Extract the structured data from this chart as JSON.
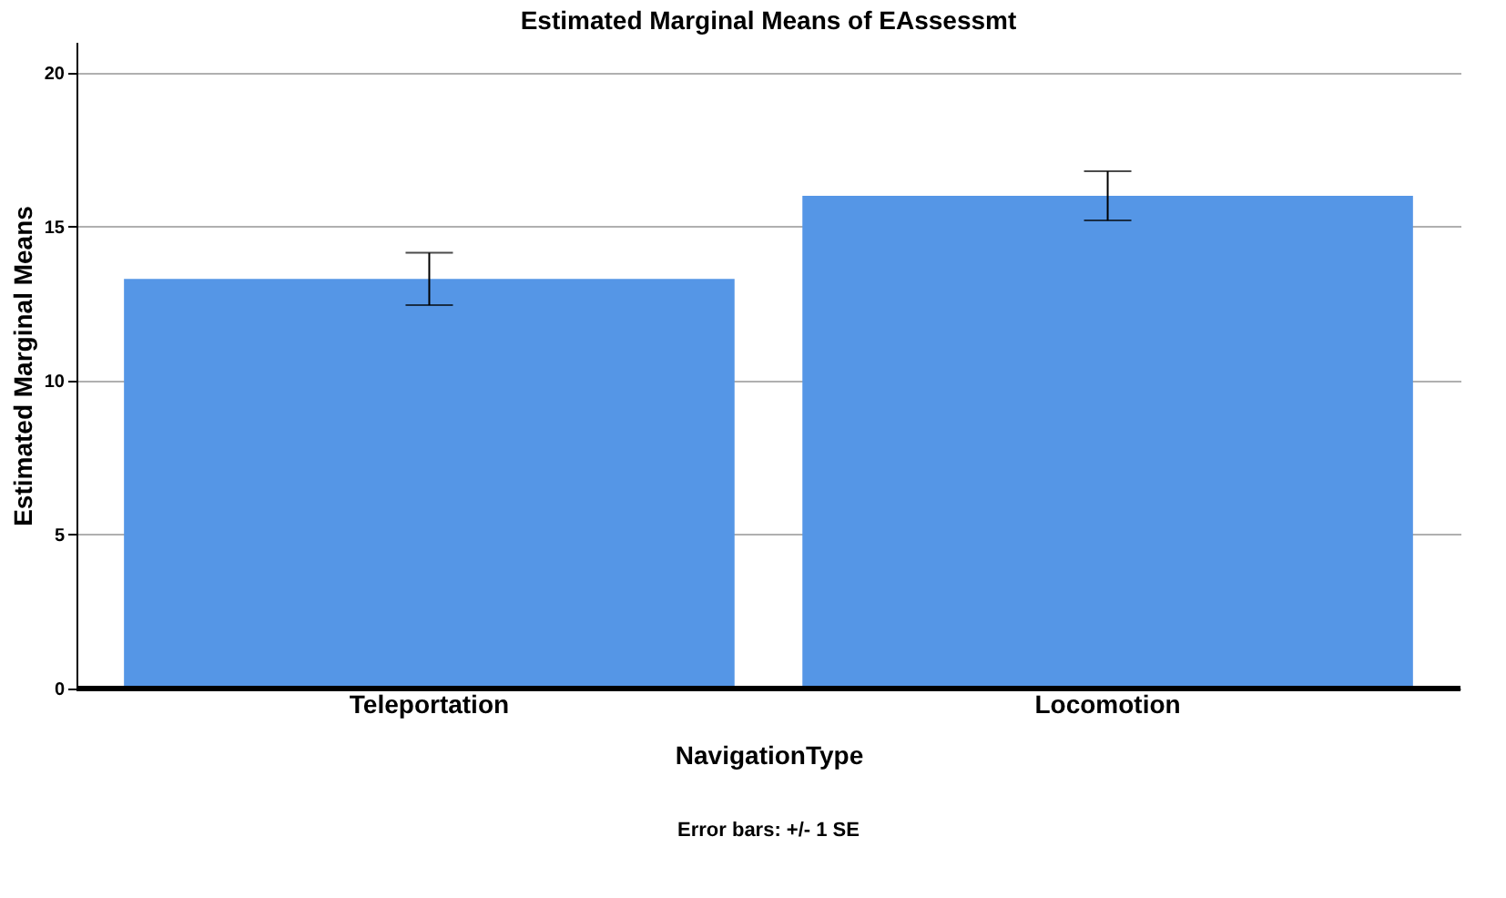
{
  "chart_data": {
    "type": "bar",
    "title": "Estimated Marginal Means of EAssessmt",
    "xlabel": "NavigationType",
    "ylabel": "Estimated Marginal Means",
    "categories": [
      "Teleportation",
      "Locomotion"
    ],
    "values": [
      13.3,
      16.0
    ],
    "errors": [
      0.85,
      0.8
    ],
    "color": "#5596e6",
    "ylim": [
      0,
      21
    ],
    "yticks": [
      0,
      5,
      10,
      15,
      20
    ],
    "grid": "y",
    "annotations": [
      "Error bars: +/- 1 SE"
    ]
  }
}
